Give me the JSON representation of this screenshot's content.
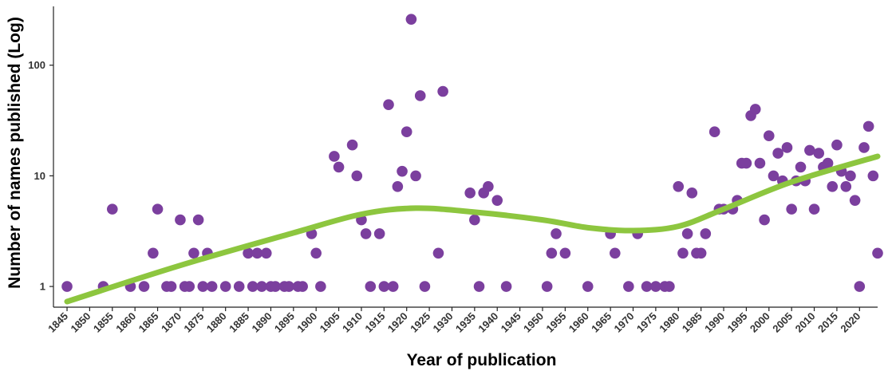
{
  "chart_data": {
    "type": "scatter",
    "title": "",
    "xlabel": "Year of publication",
    "ylabel": "Number of names published (Log)",
    "y_scale": "log",
    "xlim": [
      1842,
      2024
    ],
    "ylim": [
      0.65,
      340
    ],
    "x_ticks": [
      1845,
      1850,
      1855,
      1860,
      1865,
      1870,
      1875,
      1880,
      1885,
      1890,
      1895,
      1900,
      1905,
      1910,
      1915,
      1920,
      1925,
      1930,
      1935,
      1940,
      1945,
      1950,
      1955,
      1960,
      1965,
      1970,
      1975,
      1980,
      1985,
      1990,
      1995,
      2000,
      2005,
      2010,
      2015,
      2020
    ],
    "y_ticks": [
      1,
      10,
      100
    ],
    "y_tick_labels": [
      "1",
      "10",
      "100"
    ],
    "grid": false,
    "legend": "none",
    "point_color": "#7B3F9E",
    "trend_color": "#8DC63F",
    "points": [
      {
        "x": 1845,
        "y": 1
      },
      {
        "x": 1853,
        "y": 1
      },
      {
        "x": 1855,
        "y": 5
      },
      {
        "x": 1859,
        "y": 1
      },
      {
        "x": 1862,
        "y": 1
      },
      {
        "x": 1864,
        "y": 2
      },
      {
        "x": 1865,
        "y": 5
      },
      {
        "x": 1867,
        "y": 1
      },
      {
        "x": 1868,
        "y": 1
      },
      {
        "x": 1870,
        "y": 4
      },
      {
        "x": 1871,
        "y": 1
      },
      {
        "x": 1872,
        "y": 1
      },
      {
        "x": 1873,
        "y": 2
      },
      {
        "x": 1874,
        "y": 4
      },
      {
        "x": 1875,
        "y": 1
      },
      {
        "x": 1876,
        "y": 2
      },
      {
        "x": 1877,
        "y": 1
      },
      {
        "x": 1880,
        "y": 1
      },
      {
        "x": 1883,
        "y": 1
      },
      {
        "x": 1885,
        "y": 2
      },
      {
        "x": 1886,
        "y": 1
      },
      {
        "x": 1887,
        "y": 2
      },
      {
        "x": 1888,
        "y": 1
      },
      {
        "x": 1889,
        "y": 2
      },
      {
        "x": 1890,
        "y": 1
      },
      {
        "x": 1891,
        "y": 1
      },
      {
        "x": 1893,
        "y": 1
      },
      {
        "x": 1894,
        "y": 1
      },
      {
        "x": 1896,
        "y": 1
      },
      {
        "x": 1897,
        "y": 1
      },
      {
        "x": 1899,
        "y": 3
      },
      {
        "x": 1900,
        "y": 2
      },
      {
        "x": 1901,
        "y": 1
      },
      {
        "x": 1904,
        "y": 15
      },
      {
        "x": 1905,
        "y": 12
      },
      {
        "x": 1908,
        "y": 19
      },
      {
        "x": 1909,
        "y": 10
      },
      {
        "x": 1910,
        "y": 4
      },
      {
        "x": 1911,
        "y": 3
      },
      {
        "x": 1912,
        "y": 1
      },
      {
        "x": 1914,
        "y": 3
      },
      {
        "x": 1915,
        "y": 1
      },
      {
        "x": 1916,
        "y": 44
      },
      {
        "x": 1917,
        "y": 1
      },
      {
        "x": 1918,
        "y": 8
      },
      {
        "x": 1919,
        "y": 11
      },
      {
        "x": 1920,
        "y": 25
      },
      {
        "x": 1921,
        "y": 260
      },
      {
        "x": 1922,
        "y": 10
      },
      {
        "x": 1923,
        "y": 53
      },
      {
        "x": 1924,
        "y": 1
      },
      {
        "x": 1927,
        "y": 2
      },
      {
        "x": 1928,
        "y": 58
      },
      {
        "x": 1934,
        "y": 7
      },
      {
        "x": 1935,
        "y": 4
      },
      {
        "x": 1936,
        "y": 1
      },
      {
        "x": 1937,
        "y": 7
      },
      {
        "x": 1938,
        "y": 8
      },
      {
        "x": 1940,
        "y": 6
      },
      {
        "x": 1942,
        "y": 1
      },
      {
        "x": 1951,
        "y": 1
      },
      {
        "x": 1952,
        "y": 2
      },
      {
        "x": 1953,
        "y": 3
      },
      {
        "x": 1955,
        "y": 2
      },
      {
        "x": 1960,
        "y": 1
      },
      {
        "x": 1965,
        "y": 3
      },
      {
        "x": 1966,
        "y": 2
      },
      {
        "x": 1969,
        "y": 1
      },
      {
        "x": 1971,
        "y": 3
      },
      {
        "x": 1973,
        "y": 1
      },
      {
        "x": 1975,
        "y": 1
      },
      {
        "x": 1977,
        "y": 1
      },
      {
        "x": 1978,
        "y": 1
      },
      {
        "x": 1980,
        "y": 8
      },
      {
        "x": 1981,
        "y": 2
      },
      {
        "x": 1982,
        "y": 3
      },
      {
        "x": 1983,
        "y": 7
      },
      {
        "x": 1984,
        "y": 2
      },
      {
        "x": 1985,
        "y": 2
      },
      {
        "x": 1986,
        "y": 3
      },
      {
        "x": 1988,
        "y": 25
      },
      {
        "x": 1989,
        "y": 5
      },
      {
        "x": 1990,
        "y": 5
      },
      {
        "x": 1992,
        "y": 5
      },
      {
        "x": 1993,
        "y": 6
      },
      {
        "x": 1994,
        "y": 13
      },
      {
        "x": 1995,
        "y": 13
      },
      {
        "x": 1996,
        "y": 35
      },
      {
        "x": 1997,
        "y": 40
      },
      {
        "x": 1998,
        "y": 13
      },
      {
        "x": 1999,
        "y": 4
      },
      {
        "x": 2000,
        "y": 23
      },
      {
        "x": 2001,
        "y": 10
      },
      {
        "x": 2002,
        "y": 16
      },
      {
        "x": 2003,
        "y": 9
      },
      {
        "x": 2004,
        "y": 18
      },
      {
        "x": 2005,
        "y": 5
      },
      {
        "x": 2006,
        "y": 9
      },
      {
        "x": 2007,
        "y": 12
      },
      {
        "x": 2008,
        "y": 9
      },
      {
        "x": 2009,
        "y": 17
      },
      {
        "x": 2010,
        "y": 5
      },
      {
        "x": 2011,
        "y": 16
      },
      {
        "x": 2012,
        "y": 12
      },
      {
        "x": 2013,
        "y": 13
      },
      {
        "x": 2014,
        "y": 8
      },
      {
        "x": 2015,
        "y": 19
      },
      {
        "x": 2016,
        "y": 11
      },
      {
        "x": 2017,
        "y": 8
      },
      {
        "x": 2018,
        "y": 10
      },
      {
        "x": 2019,
        "y": 6
      },
      {
        "x": 2020,
        "y": 1
      },
      {
        "x": 2021,
        "y": 18
      },
      {
        "x": 2022,
        "y": 28
      },
      {
        "x": 2023,
        "y": 10
      },
      {
        "x": 2024,
        "y": 2
      }
    ],
    "trend": {
      "x": [
        1845,
        1870,
        1895,
        1910,
        1922,
        1935,
        1950,
        1960,
        1970,
        1980,
        1990,
        2005,
        2024
      ],
      "y": [
        0.73,
        1.55,
        3.05,
        4.5,
        5.1,
        4.7,
        4.0,
        3.4,
        3.2,
        3.5,
        5.0,
        8.8,
        15.0
      ]
    }
  }
}
